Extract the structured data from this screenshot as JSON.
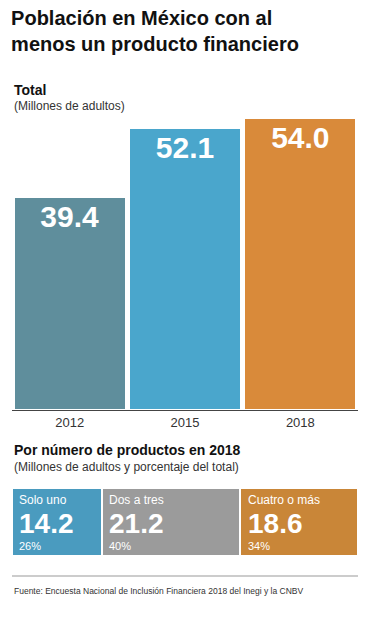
{
  "chart_data": [
    {
      "type": "bar",
      "title": "Población en México con al menos un producto financiero",
      "subtitle": "Total",
      "note": "(Millones de adultos)",
      "categories": [
        "2012",
        "2015",
        "2018"
      ],
      "values": [
        39.4,
        52.1,
        54.0
      ],
      "value_labels": [
        "39.4",
        "52.1",
        "54.0"
      ],
      "colors": [
        "#5f8e9c",
        "#4aa6cc",
        "#d98a3a"
      ],
      "ylim": [
        0,
        54.0
      ],
      "data_labels": true,
      "tick_labels": "x",
      "grid": false
    },
    {
      "type": "bar",
      "title": "Por número de productos en 2018",
      "subtitle": "(Millones de adultos y porcentaje del total)",
      "orientation": "horizontal",
      "stacked": true,
      "series": [
        {
          "name": "Solo uno",
          "color": "#4a9bbf",
          "values": [
            26
          ],
          "value_labels": [
            "26%"
          ],
          "millions": [
            14.2
          ]
        },
        {
          "name": "Dos a tres",
          "color": "#9b9b9b",
          "values": [
            40
          ],
          "value_labels": [
            "40%"
          ],
          "millions": [
            21.2
          ]
        },
        {
          "name": "Cuatro o más",
          "color": "#c98638",
          "values": [
            34
          ],
          "value_labels": [
            "34%"
          ],
          "millions": [
            18.6
          ]
        }
      ],
      "xlim": [
        0,
        100
      ],
      "data_labels": true,
      "tick_labels": false,
      "grid": false
    }
  ],
  "source": "Fuente: Encuesta Nacional de Inclusión Financiera 2018 del Inegi y la CNBV"
}
